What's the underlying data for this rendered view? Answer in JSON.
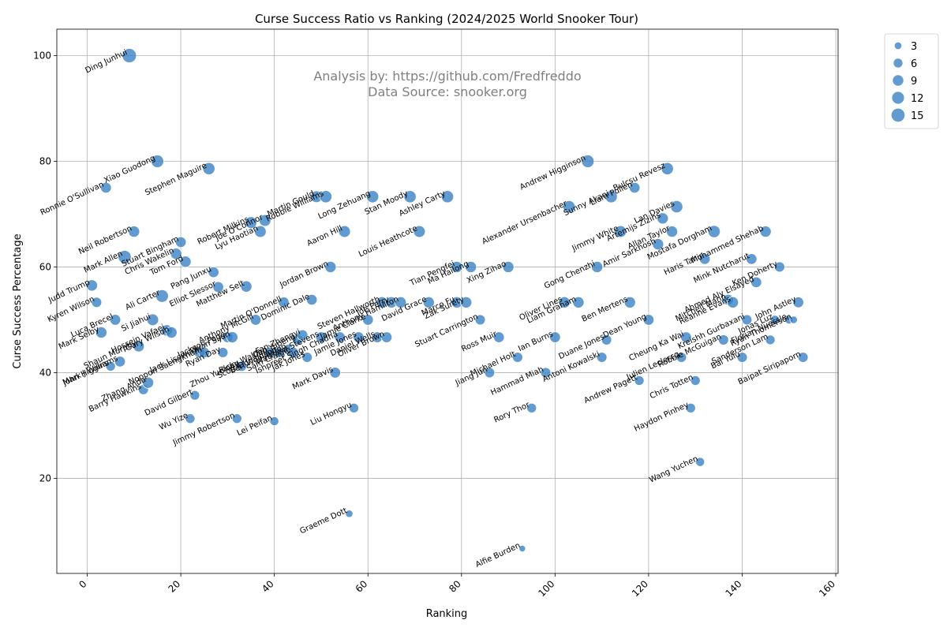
{
  "chart_data": {
    "type": "scatter",
    "title": "Curse Success Ratio vs Ranking (2024/2025 World Snooker Tour)",
    "xlabel": "Ranking",
    "ylabel": "Curse Success Percentage",
    "xlim": [
      -6.5,
      160.5
    ],
    "ylim": [
      2,
      105
    ],
    "xticks": [
      0,
      20,
      40,
      60,
      80,
      100,
      120,
      140,
      160
    ],
    "yticks": [
      20,
      40,
      60,
      80,
      100
    ],
    "grid": true,
    "label_rotation_deg": -25,
    "xtick_rotation_deg": -45,
    "annotation_lines": [
      "Analysis by: https://github.com/Fredfreddo",
      "Data Source: snooker.org"
    ],
    "legend": {
      "placement": "outside-upper-right",
      "sizes": [
        3,
        6,
        9,
        12,
        15
      ]
    },
    "size_range": [
      1,
      16
    ],
    "color": "#3b82c4",
    "points": [
      {
        "name": "Ding Junhui",
        "x": 9,
        "y": 100,
        "s": 16
      },
      {
        "name": "Judd Trump",
        "x": 1,
        "y": 56.5,
        "s": 9
      },
      {
        "name": "Kyren Wilson",
        "x": 2,
        "y": 53.3,
        "s": 7
      },
      {
        "name": "Mark Selby",
        "x": 3,
        "y": 47.6,
        "s": 9
      },
      {
        "name": "Ronnie O'Sullivan",
        "x": 4,
        "y": 75,
        "s": 8
      },
      {
        "name": "John Higgins",
        "x": 5,
        "y": 41.2,
        "s": 6
      },
      {
        "name": "Luca Brecel",
        "x": 6,
        "y": 50,
        "s": 8
      },
      {
        "name": "Mark J Williams",
        "x": 7,
        "y": 42.1,
        "s": 8
      },
      {
        "name": "Mark Allen",
        "x": 8,
        "y": 61.9,
        "s": 13
      },
      {
        "name": "Neil Robertson",
        "x": 10,
        "y": 66.7,
        "s": 9
      },
      {
        "name": "Shaun Murphy",
        "x": 11,
        "y": 45,
        "s": 9
      },
      {
        "name": "Barry Hawkins",
        "x": 12,
        "y": 36.8,
        "s": 7
      },
      {
        "name": "Zhang Anda",
        "x": 13,
        "y": 38.1,
        "s": 9
      },
      {
        "name": "Si Jiahui",
        "x": 14,
        "y": 50,
        "s": 10
      },
      {
        "name": "Xiao Guodong",
        "x": 15,
        "y": 80,
        "s": 12
      },
      {
        "name": "Ali Carter",
        "x": 16,
        "y": 54.5,
        "s": 12
      },
      {
        "name": "Hossein Vafaei",
        "x": 17,
        "y": 48,
        "s": 9
      },
      {
        "name": "Gary Wilson",
        "x": 18,
        "y": 47.6,
        "s": 9
      },
      {
        "name": "Chris Wakelin",
        "x": 19,
        "y": 62.5,
        "s": 9
      },
      {
        "name": "Stuart Bingham",
        "x": 20,
        "y": 64.7,
        "s": 8
      },
      {
        "name": "Tom Ford",
        "x": 21,
        "y": 61,
        "s": 9
      },
      {
        "name": "Wu Yize",
        "x": 22,
        "y": 31.3,
        "s": 6
      },
      {
        "name": "David Gilbert",
        "x": 23,
        "y": 35.7,
        "s": 6
      },
      {
        "name": "Jack Lisowski",
        "x": 24,
        "y": 43.8,
        "s": 8
      },
      {
        "name": "Noppon Saengkham",
        "x": 25,
        "y": 43.8,
        "s": 8
      },
      {
        "name": "Stephen Maguire",
        "x": 26,
        "y": 78.6,
        "s": 11
      },
      {
        "name": "Pang Junxu",
        "x": 27,
        "y": 59,
        "s": 8
      },
      {
        "name": "Elliot Slessor",
        "x": 28,
        "y": 56.2,
        "s": 8
      },
      {
        "name": "Ryan Day",
        "x": 29,
        "y": 43.8,
        "s": 7
      },
      {
        "name": "Jackson Page",
        "x": 30,
        "y": 46.7,
        "s": 8
      },
      {
        "name": "Yuan Sijun",
        "x": 31,
        "y": 46.7,
        "s": 9
      },
      {
        "name": "Jimmy Robertson",
        "x": 32,
        "y": 31.3,
        "s": 6
      },
      {
        "name": "Zhou Yuelong",
        "x": 33,
        "y": 41.2,
        "s": 7
      },
      {
        "name": "Matthew Selt",
        "x": 34,
        "y": 56.3,
        "s": 9
      },
      {
        "name": "Robert Milkins",
        "x": 35,
        "y": 68.4,
        "s": 10
      },
      {
        "name": "Anthony McGill",
        "x": 36,
        "y": 50,
        "s": 8
      },
      {
        "name": "Lyu Haotian",
        "x": 37,
        "y": 66.7,
        "s": 10
      },
      {
        "name": "Joe O'Connor",
        "x": 38,
        "y": 68.8,
        "s": 10
      },
      {
        "name": "Ricky Walden",
        "x": 39,
        "y": 43.8,
        "s": 8
      },
      {
        "name": "Lei Peifan",
        "x": 40,
        "y": 30.8,
        "s": 5
      },
      {
        "name": "Scott Donaldson",
        "x": 41,
        "y": 43.8,
        "s": 7
      },
      {
        "name": "Martin O'Donnell",
        "x": 42,
        "y": 53.3,
        "s": 8
      },
      {
        "name": "Ben Woollaston",
        "x": 43,
        "y": 44.4,
        "s": 7
      },
      {
        "name": "Sam Craigie",
        "x": 44,
        "y": 43.8,
        "s": 8
      },
      {
        "name": "Cao Yupeng",
        "x": 45,
        "y": 46.2,
        "s": 8
      },
      {
        "name": "Fan Zhengyi",
        "x": 46,
        "y": 47.1,
        "s": 8
      },
      {
        "name": "Jak Jones",
        "x": 47,
        "y": 42.9,
        "s": 7
      },
      {
        "name": "Dominic Dale",
        "x": 48,
        "y": 53.8,
        "s": 8
      },
      {
        "name": "Martin Gould",
        "x": 49,
        "y": 73.3,
        "s": 10
      },
      {
        "name": "Matthew Stevens",
        "x": 50,
        "y": 46.7,
        "s": 8
      },
      {
        "name": "Robbie Williams",
        "x": 51,
        "y": 73.3,
        "s": 11
      },
      {
        "name": "Jordan Brown",
        "x": 52,
        "y": 60,
        "s": 9
      },
      {
        "name": "Mark Davis",
        "x": 53,
        "y": 40,
        "s": 8
      },
      {
        "name": "Ishpreet Singh Chadha",
        "x": 54,
        "y": 46.7,
        "s": 8
      },
      {
        "name": "Aaron Hill",
        "x": 55,
        "y": 66.7,
        "s": 10
      },
      {
        "name": "Graeme Dott",
        "x": 56,
        "y": 13.3,
        "s": 3
      },
      {
        "name": "Liu Hongyu",
        "x": 57,
        "y": 33.3,
        "s": 6
      },
      {
        "name": "Jamie Jones",
        "x": 58,
        "y": 46.7,
        "s": 8
      },
      {
        "name": "Jamie Clarke",
        "x": 60,
        "y": 50,
        "s": 8
      },
      {
        "name": "Long Zehuang",
        "x": 61,
        "y": 73.3,
        "s": 11
      },
      {
        "name": "Daniel Wells",
        "x": 62,
        "y": 46.7,
        "s": 8
      },
      {
        "name": "Steven Hallworth",
        "x": 63,
        "y": 53.3,
        "s": 9
      },
      {
        "name": "Oliver Brown",
        "x": 64,
        "y": 46.7,
        "s": 8
      },
      {
        "name": "Joe Perry",
        "x": 65,
        "y": 53.3,
        "s": 9
      },
      {
        "name": "Anthony Hamilton",
        "x": 67,
        "y": 53.3,
        "s": 9
      },
      {
        "name": "Stan Moody",
        "x": 69,
        "y": 73.3,
        "s": 11
      },
      {
        "name": "Louis Heathcote",
        "x": 71,
        "y": 66.7,
        "s": 10
      },
      {
        "name": "David Grace",
        "x": 73,
        "y": 53.3,
        "s": 9
      },
      {
        "name": "Ashley Carty",
        "x": 77,
        "y": 73.3,
        "s": 11
      },
      {
        "name": "Marco Fu",
        "x": 79,
        "y": 53.3,
        "s": 9
      },
      {
        "name": "Tian Pengfei",
        "x": 79,
        "y": 60,
        "s": 9
      },
      {
        "name": "Zak Surety",
        "x": 81,
        "y": 53.3,
        "s": 9
      },
      {
        "name": "Ma Hailong",
        "x": 82,
        "y": 60,
        "s": 9
      },
      {
        "name": "Stuart Carrington",
        "x": 84,
        "y": 50,
        "s": 7
      },
      {
        "name": "Jiang Jun",
        "x": 86,
        "y": 40,
        "s": 7
      },
      {
        "name": "Ross Muir",
        "x": 88,
        "y": 46.7,
        "s": 8
      },
      {
        "name": "Xing Zihao",
        "x": 90,
        "y": 60,
        "s": 9
      },
      {
        "name": "Michael Holt",
        "x": 92,
        "y": 42.9,
        "s": 7
      },
      {
        "name": "Alfie Burden",
        "x": 93,
        "y": 6.7,
        "s": 2
      },
      {
        "name": "Rory Thor",
        "x": 95,
        "y": 33.3,
        "s": 6
      },
      {
        "name": "Hammad Miah",
        "x": 98,
        "y": 40,
        "s": 7
      },
      {
        "name": "Ian Burns",
        "x": 100,
        "y": 46.7,
        "s": 8
      },
      {
        "name": "Oliver Lines",
        "x": 102,
        "y": 53.3,
        "s": 9
      },
      {
        "name": "Alexander Ursenbacher",
        "x": 103,
        "y": 71.4,
        "s": 11
      },
      {
        "name": "Liam Graham",
        "x": 105,
        "y": 53.3,
        "s": 9
      },
      {
        "name": "Andrew Higginson",
        "x": 107,
        "y": 80,
        "s": 12
      },
      {
        "name": "Gong Chenzhi",
        "x": 109,
        "y": 60,
        "s": 9
      },
      {
        "name": "Antoni Kowalski",
        "x": 110,
        "y": 42.9,
        "s": 7
      },
      {
        "name": "Duane Jones",
        "x": 111,
        "y": 46.2,
        "s": 7
      },
      {
        "name": "Sunny Akani",
        "x": 112,
        "y": 73.3,
        "s": 11
      },
      {
        "name": "Jimmy White",
        "x": 114,
        "y": 66.7,
        "s": 10
      },
      {
        "name": "Ben Mertens",
        "x": 116,
        "y": 53.3,
        "s": 9
      },
      {
        "name": "Liam Pullen",
        "x": 117,
        "y": 75,
        "s": 8
      },
      {
        "name": "Andrew Pagett",
        "x": 118,
        "y": 38.5,
        "s": 6
      },
      {
        "name": "Dean Young",
        "x": 120,
        "y": 50,
        "s": 8
      },
      {
        "name": "Amir Sarkhosh",
        "x": 122,
        "y": 64.3,
        "s": 9
      },
      {
        "name": "Artemijs Zizins",
        "x": 123,
        "y": 69.2,
        "s": 9
      },
      {
        "name": "Bulcsu Revesz",
        "x": 124,
        "y": 78.6,
        "s": 11
      },
      {
        "name": "Allan Taylor",
        "x": 125,
        "y": 66.7,
        "s": 9
      },
      {
        "name": "Lan Davies",
        "x": 126,
        "y": 71.4,
        "s": 11
      },
      {
        "name": "Julien Leclercq",
        "x": 127,
        "y": 42.9,
        "s": 7
      },
      {
        "name": "Cheung Ka Wai",
        "x": 128,
        "y": 46.7,
        "s": 8
      },
      {
        "name": "Haydon Pinhey",
        "x": 129,
        "y": 33.3,
        "s": 6
      },
      {
        "name": "Chris Totten",
        "x": 130,
        "y": 38.5,
        "s": 6
      },
      {
        "name": "Wang Yuchen",
        "x": 131,
        "y": 23.1,
        "s": 5
      },
      {
        "name": "Haris Tahir",
        "x": 132,
        "y": 61.5,
        "s": 8
      },
      {
        "name": "Mostafa Dorgham",
        "x": 134,
        "y": 66.7,
        "s": 11
      },
      {
        "name": "Robbie McGuigan",
        "x": 136,
        "y": 46.2,
        "s": 7
      },
      {
        "name": "Mitchell Mann",
        "x": 137,
        "y": 53.8,
        "s": 8
      },
      {
        "name": "Reanne Evans",
        "x": 138,
        "y": 53.3,
        "s": 9
      },
      {
        "name": "Bai Yulu",
        "x": 140,
        "y": 42.9,
        "s": 7
      },
      {
        "name": "Kreishh Gurbaxani",
        "x": 141,
        "y": 50,
        "s": 7
      },
      {
        "name": "Mink Nutcharut",
        "x": 142,
        "y": 61.5,
        "s": 8
      },
      {
        "name": "Ahmed Aly Elsayed",
        "x": 143,
        "y": 57.1,
        "s": 8
      },
      {
        "name": "Mohammed Shehab",
        "x": 145,
        "y": 66.7,
        "s": 9
      },
      {
        "name": "Sanderson Lam",
        "x": 146,
        "y": 46.2,
        "s": 6
      },
      {
        "name": "Jonas Luz",
        "x": 147,
        "y": 50,
        "s": 5
      },
      {
        "name": "Ken Doherty",
        "x": 148,
        "y": 60,
        "s": 7
      },
      {
        "name": "Florian Nuessle",
        "x": 150,
        "y": 50,
        "s": 4
      },
      {
        "name": "Ryan Thomerson",
        "x": 151,
        "y": 50,
        "s": 3
      },
      {
        "name": "John Astley",
        "x": 152,
        "y": 53.3,
        "s": 8
      },
      {
        "name": "Baipat Siripaporn",
        "x": 153,
        "y": 42.9,
        "s": 7
      }
    ]
  }
}
